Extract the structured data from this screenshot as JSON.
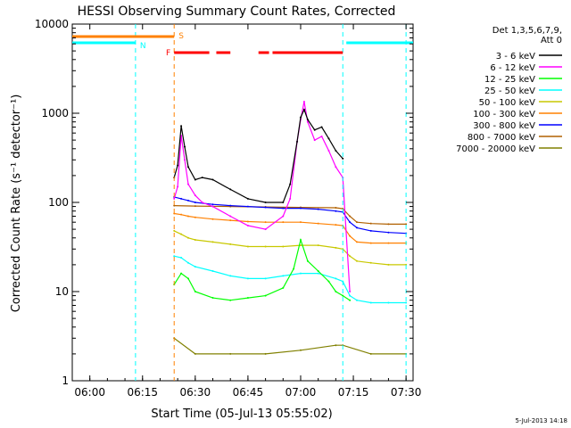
{
  "chart_data": {
    "type": "line",
    "title": "HESSI Observing Summary Count Rates, Corrected",
    "xlabel": "Start Time (05-Jul-13 05:55:02)",
    "ylabel": "Corrected Count Rate (s⁻¹ detector⁻¹)",
    "y_scale": "log",
    "ylim": [
      1,
      10000
    ],
    "xlim": [
      "05:55",
      "07:32"
    ],
    "grid": false,
    "legend_position": "top-right",
    "x_ticks": [
      "06:00",
      "06:15",
      "06:30",
      "06:45",
      "07:00",
      "07:15",
      "07:30"
    ],
    "y_ticks": [
      "1",
      "10",
      "100",
      "1000",
      "10000"
    ],
    "legend_header": [
      "Det 1,3,5,6,7,9,",
      "Att 0"
    ],
    "timestamp": "5-Jul-2013 14:18",
    "annotations": [
      {
        "label": "N",
        "type": "night",
        "color": "#00ffff",
        "ranges": [
          [
            "05:55",
            "06:13"
          ],
          [
            "07:13",
            "07:32"
          ]
        ]
      },
      {
        "label": "S",
        "type": "saa",
        "color": "#ff8000",
        "ranges": [
          [
            "05:55",
            "06:24"
          ]
        ]
      },
      {
        "label": "F",
        "type": "flare",
        "color": "#ff0000",
        "ranges": [
          [
            "06:24",
            "06:34"
          ],
          [
            "06:36",
            "06:40"
          ],
          [
            "06:48",
            "06:51"
          ],
          [
            "06:52",
            "07:12"
          ]
        ]
      }
    ],
    "markers": [
      {
        "time": "06:13",
        "color": "#00ffff"
      },
      {
        "time": "06:24",
        "color": "#ff8000"
      },
      {
        "time": "07:12",
        "color": "#00ffff"
      },
      {
        "time": "07:30",
        "color": "#00ffff"
      }
    ],
    "series": [
      {
        "name": "3 - 6 keV",
        "color": "#000000",
        "x": [
          "06:24",
          "06:25",
          "06:26",
          "06:27",
          "06:28",
          "06:30",
          "06:32",
          "06:35",
          "06:40",
          "06:45",
          "06:50",
          "06:55",
          "06:57",
          "06:59",
          "07:00",
          "07:01",
          "07:02",
          "07:04",
          "07:06",
          "07:08",
          "07:10",
          "07:12"
        ],
        "y": [
          190,
          260,
          720,
          420,
          250,
          180,
          190,
          180,
          140,
          110,
          100,
          100,
          160,
          480,
          900,
          1100,
          850,
          650,
          700,
          520,
          380,
          310
        ]
      },
      {
        "name": "6 - 12 keV",
        "color": "#ff00ff",
        "x": [
          "06:24",
          "06:25",
          "06:26",
          "06:27",
          "06:28",
          "06:30",
          "06:32",
          "06:35",
          "06:40",
          "06:45",
          "06:50",
          "06:55",
          "06:57",
          "06:59",
          "07:00",
          "07:01",
          "07:02",
          "07:04",
          "07:06",
          "07:08",
          "07:10",
          "07:12",
          "07:14"
        ],
        "y": [
          110,
          150,
          560,
          300,
          160,
          120,
          100,
          90,
          70,
          55,
          50,
          70,
          110,
          480,
          850,
          1350,
          800,
          500,
          550,
          380,
          250,
          190,
          10
        ]
      },
      {
        "name": "12 - 25 keV",
        "color": "#00ff00",
        "x": [
          "06:24",
          "06:26",
          "06:28",
          "06:30",
          "06:35",
          "06:40",
          "06:45",
          "06:50",
          "06:55",
          "06:58",
          "07:00",
          "07:02",
          "07:05",
          "07:08",
          "07:10",
          "07:12",
          "07:14"
        ],
        "y": [
          12,
          16,
          14,
          10,
          8.5,
          8,
          8.5,
          9,
          11,
          18,
          38,
          22,
          17,
          13,
          10,
          9,
          8
        ]
      },
      {
        "name": "25 - 50 keV",
        "color": "#00ffff",
        "x": [
          "06:24",
          "06:26",
          "06:28",
          "06:30",
          "06:35",
          "06:40",
          "06:45",
          "06:50",
          "06:55",
          "07:00",
          "07:05",
          "07:10",
          "07:12",
          "07:14",
          "07:16",
          "07:20",
          "07:25",
          "07:30"
        ],
        "y": [
          25,
          24,
          21,
          19,
          17,
          15,
          14,
          14,
          15,
          16,
          16,
          14,
          13,
          9,
          8,
          7.5,
          7.5,
          7.5
        ]
      },
      {
        "name": "50 - 100 keV",
        "color": "#c8c800",
        "x": [
          "06:24",
          "06:26",
          "06:28",
          "06:30",
          "06:35",
          "06:40",
          "06:45",
          "06:50",
          "06:55",
          "07:00",
          "07:05",
          "07:10",
          "07:12",
          "07:14",
          "07:16",
          "07:20",
          "07:25",
          "07:30"
        ],
        "y": [
          48,
          44,
          40,
          38,
          36,
          34,
          32,
          32,
          32,
          33,
          33,
          31,
          30,
          25,
          22,
          21,
          20,
          20
        ]
      },
      {
        "name": "100 - 300 keV",
        "color": "#ff8000",
        "x": [
          "06:24",
          "06:26",
          "06:28",
          "06:30",
          "06:35",
          "06:40",
          "06:45",
          "06:50",
          "06:55",
          "07:00",
          "07:05",
          "07:10",
          "07:12",
          "07:14",
          "07:16",
          "07:20",
          "07:25",
          "07:30"
        ],
        "y": [
          75,
          73,
          70,
          68,
          65,
          63,
          61,
          60,
          60,
          60,
          58,
          56,
          55,
          42,
          36,
          35,
          35,
          35
        ]
      },
      {
        "name": "300 - 800 keV",
        "color": "#0000ff",
        "x": [
          "06:24",
          "06:26",
          "06:28",
          "06:30",
          "06:35",
          "06:40",
          "06:45",
          "06:50",
          "06:55",
          "07:00",
          "07:05",
          "07:10",
          "07:12",
          "07:14",
          "07:16",
          "07:20",
          "07:25",
          "07:30"
        ],
        "y": [
          115,
          110,
          105,
          100,
          95,
          92,
          90,
          88,
          86,
          86,
          84,
          80,
          78,
          60,
          52,
          48,
          46,
          45
        ]
      },
      {
        "name": "800 - 7000 keV",
        "color": "#b06000",
        "x": [
          "06:24",
          "06:30",
          "06:40",
          "06:50",
          "07:00",
          "07:10",
          "07:12",
          "07:14",
          "07:16",
          "07:20",
          "07:25",
          "07:30"
        ],
        "y": [
          92,
          91,
          90,
          89,
          88,
          87,
          85,
          70,
          60,
          58,
          57,
          57
        ]
      },
      {
        "name": "7000 - 20000 keV",
        "color": "#808000",
        "x": [
          "06:24",
          "06:30",
          "06:40",
          "06:50",
          "07:00",
          "07:10",
          "07:12",
          "07:20",
          "07:30"
        ],
        "y": [
          3,
          2,
          2,
          2,
          2.2,
          2.5,
          2.5,
          2,
          2
        ]
      }
    ]
  }
}
